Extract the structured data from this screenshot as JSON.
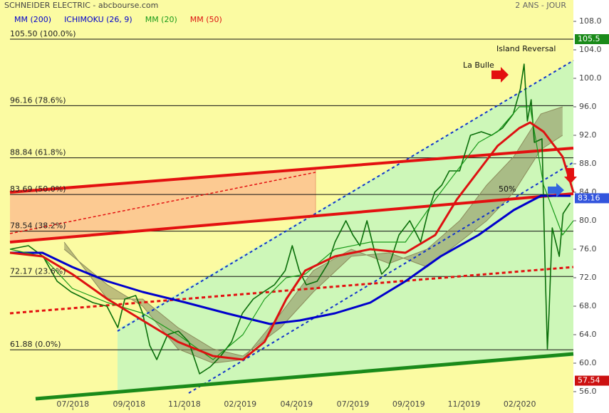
{
  "chart_data": {
    "type": "line",
    "title": "SCHNEIDER ELECTRIC - abcbourse.com",
    "subtitle": "2 ANS - JOUR",
    "xlim": [
      0,
      104
    ],
    "ylim": [
      53.2,
      109.2
    ],
    "xticks": [
      {
        "value": 11.6,
        "label": "07/2018"
      },
      {
        "value": 22,
        "label": "09/2018"
      },
      {
        "value": 32.2,
        "label": "11/2018"
      },
      {
        "value": 42.5,
        "label": "02/2019"
      },
      {
        "value": 52.9,
        "label": "04/2019"
      },
      {
        "value": 63.3,
        "label": "07/2019"
      },
      {
        "value": 73.6,
        "label": "09/2019"
      },
      {
        "value": 83.8,
        "label": "11/2019"
      },
      {
        "value": 94.1,
        "label": "02/2020"
      }
    ],
    "yticks": [
      {
        "value": 56,
        "label": "56.0"
      },
      {
        "value": 60,
        "label": "60.0"
      },
      {
        "value": 64,
        "label": "64.0"
      },
      {
        "value": 68,
        "label": "68.0"
      },
      {
        "value": 72,
        "label": "72.0"
      },
      {
        "value": 76,
        "label": "76.0"
      },
      {
        "value": 80,
        "label": "80.0"
      },
      {
        "value": 84,
        "label": "84.0"
      },
      {
        "value": 88,
        "label": "88.0"
      },
      {
        "value": 92,
        "label": "92.0"
      },
      {
        "value": 96,
        "label": "96.0"
      },
      {
        "value": 100,
        "label": "100.0"
      },
      {
        "value": 104,
        "label": "104.0"
      },
      {
        "value": 108,
        "label": "108.0"
      }
    ],
    "levels": [
      {
        "value": 105.5,
        "label": "105.50 (100.0%)"
      },
      {
        "value": 96.16,
        "label": "96.16 (78.6%)"
      },
      {
        "value": 88.84,
        "label": "88.84 (61.8%)"
      },
      {
        "value": 83.69,
        "label": "83.69 (50.0%)"
      },
      {
        "value": 78.54,
        "label": "78.54 (38.2%)"
      },
      {
        "value": 72.17,
        "label": "72.17 (23.6%)"
      },
      {
        "value": 61.88,
        "label": "61.88 (0.0%)"
      }
    ],
    "price": {
      "color": "#0a6e0a",
      "x": [
        0,
        3.4,
        6.1,
        8.7,
        11.3,
        15.3,
        17.9,
        19.9,
        21.2,
        23.2,
        24.5,
        25.8,
        27.1,
        29.1,
        31.1,
        33,
        35,
        37,
        38.9,
        40.9,
        42.9,
        44.9,
        46.8,
        48.8,
        50.8,
        52.1,
        53.4,
        54.7,
        56.7,
        58.7,
        60,
        62,
        63.3,
        64.6,
        65.9,
        67.2,
        68.6,
        69.9,
        71.8,
        73.8,
        75.8,
        77.1,
        78.4,
        79.7,
        81.1,
        83,
        85,
        87,
        88.9,
        90.9,
        92.9,
        94.2,
        94.9,
        95.5,
        96.2,
        96.8,
        98.2,
        98.8,
        99.2,
        99.5,
        100.1,
        101.4,
        102.1,
        103.4
      ],
      "values": [
        76,
        76.5,
        75,
        71.5,
        70,
        68.5,
        68,
        65,
        69,
        69.5,
        67,
        62.5,
        60.5,
        64,
        64.5,
        63,
        58.5,
        59.5,
        61,
        63,
        67,
        69,
        70,
        71,
        73,
        76.5,
        73,
        71,
        71.5,
        74,
        77,
        80,
        78,
        76.5,
        80,
        76,
        72.5,
        73.5,
        78,
        80,
        77,
        81,
        84,
        85,
        87,
        87,
        92,
        92.5,
        92,
        93,
        95,
        98.5,
        102,
        94,
        97,
        91,
        91.5,
        73,
        62,
        67,
        79,
        75,
        81,
        82.5
      ]
    },
    "series": [
      {
        "name": "MM (200)",
        "color": "#0000cc",
        "x": [
          0,
          6,
          11.5,
          18,
          24.5,
          32.5,
          40,
          48,
          53.5,
          60,
          66.5,
          73,
          79.5,
          86.5,
          93,
          98,
          103.5
        ],
        "values": [
          75.5,
          75.5,
          73.5,
          71.5,
          70,
          68.5,
          67,
          65.5,
          66,
          67,
          68.5,
          71.5,
          75,
          78,
          81.5,
          83.5,
          83.5
        ]
      },
      {
        "name": "ICHIMOKU (26, 9)",
        "color": "#0000cc",
        "fill": "#8c8c5c",
        "x": [
          10,
          18,
          24.5,
          31,
          37.5,
          43,
          50,
          56,
          63,
          70,
          77,
          83,
          88,
          93,
          98,
          102
        ],
        "span_a": [
          76,
          71,
          68,
          62,
          60,
          60.5,
          67,
          73,
          76,
          74,
          76,
          80,
          85,
          89,
          95,
          96
        ],
        "span_b": [
          77,
          69,
          69,
          65,
          62,
          61,
          65,
          70,
          75,
          75.5,
          73.5,
          77,
          80,
          84,
          90,
          92
        ]
      },
      {
        "name": "MM (20)",
        "color": "#1a9a1a",
        "x": [
          0,
          6,
          11.5,
          18,
          24.5,
          31,
          37.5,
          43,
          47,
          51,
          54.5,
          60,
          66.5,
          73,
          78.5,
          82.5,
          86.5,
          90,
          94,
          96,
          98.5,
          102,
          104
        ],
        "values": [
          76,
          75,
          70.5,
          68.5,
          67,
          64,
          60.5,
          64,
          69,
          72,
          72.5,
          76,
          77,
          77,
          83,
          87,
          91,
          92.5,
          96,
          96,
          85,
          78,
          80
        ]
      },
      {
        "name": "MM (50)",
        "color": "#dd1111",
        "x": [
          0,
          6,
          11.5,
          18,
          24.5,
          31,
          37.5,
          43,
          47,
          51,
          54.5,
          60,
          66.5,
          73,
          78.5,
          82.5,
          86.5,
          90,
          94,
          96,
          98.5,
          102,
          104
        ],
        "values": [
          75.5,
          75,
          72.5,
          69,
          66,
          63,
          61,
          60.5,
          63,
          69,
          73,
          75,
          76,
          75.5,
          78,
          83,
          87,
          90.5,
          93,
          93.8,
          92.5,
          89,
          84
        ]
      }
    ],
    "annotations": [
      "La Bulle",
      "Island Reversal",
      "50%"
    ],
    "price_tags": [
      {
        "value": 105.5,
        "color": "#1a8a1a"
      },
      {
        "value": 83.16,
        "color": "#3355dd"
      },
      {
        "value": 57.54,
        "color": "#cc1111"
      }
    ]
  }
}
